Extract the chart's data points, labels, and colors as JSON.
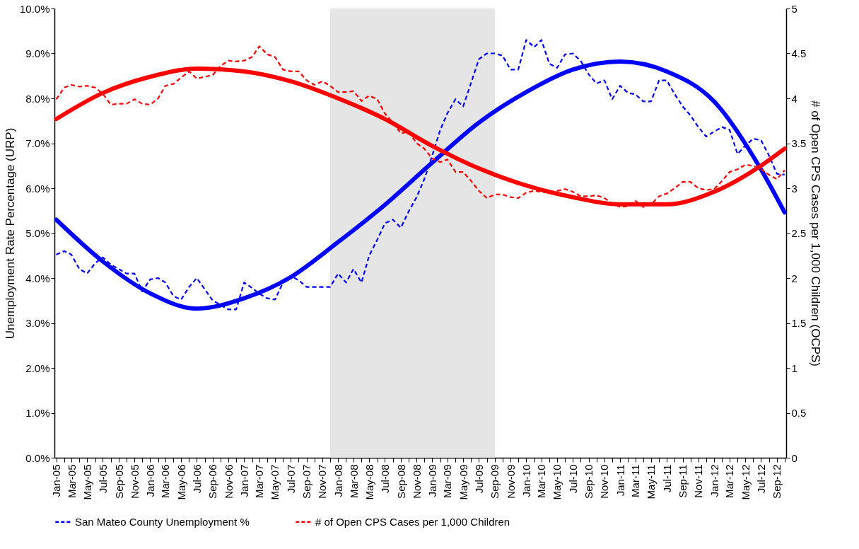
{
  "chart_data": {
    "type": "line",
    "ylabel": "Unemployment Rate Percentage (URP)",
    "y2label": "# of Open CPS Cases per 1,000 Children (OCPS)",
    "x": [
      "2005-01",
      "2005-02",
      "2005-03",
      "2005-04",
      "2005-05",
      "2005-06",
      "2005-07",
      "2005-08",
      "2005-09",
      "2005-10",
      "2005-11",
      "2005-12",
      "2006-01",
      "2006-02",
      "2006-03",
      "2006-04",
      "2006-05",
      "2006-06",
      "2006-07",
      "2006-08",
      "2006-09",
      "2006-10",
      "2006-11",
      "2006-12",
      "2007-01",
      "2007-02",
      "2007-03",
      "2007-04",
      "2007-05",
      "2007-06",
      "2007-07",
      "2007-08",
      "2007-09",
      "2007-10",
      "2007-11",
      "2007-12",
      "2008-01",
      "2008-02",
      "2008-03",
      "2008-04",
      "2008-05",
      "2008-06",
      "2008-07",
      "2008-08",
      "2008-09",
      "2008-10",
      "2008-11",
      "2008-12",
      "2009-01",
      "2009-02",
      "2009-03",
      "2009-04",
      "2009-05",
      "2009-06",
      "2009-07",
      "2009-08",
      "2009-09",
      "2009-10",
      "2009-11",
      "2009-12",
      "2010-01",
      "2010-02",
      "2010-03",
      "2010-04",
      "2010-05",
      "2010-06",
      "2010-07",
      "2010-08",
      "2010-09",
      "2010-10",
      "2010-11",
      "2010-12",
      "2011-01",
      "2011-02",
      "2011-03",
      "2011-04",
      "2011-05",
      "2011-06",
      "2011-07",
      "2011-08",
      "2011-09",
      "2011-10",
      "2011-11",
      "2011-12",
      "2012-01",
      "2012-02",
      "2012-03",
      "2012-04",
      "2012-05",
      "2012-06",
      "2012-07",
      "2012-08",
      "2012-09",
      "2012-10"
    ],
    "series": [
      {
        "name": "San Mateo County Unemployment %",
        "color": "#0000ff",
        "line_style": "dashed",
        "values": [
          4.52,
          4.6,
          4.52,
          4.2,
          4.1,
          4.33,
          4.46,
          4.3,
          4.2,
          4.1,
          4.1,
          3.7,
          3.97,
          4.0,
          3.9,
          3.6,
          3.52,
          3.8,
          4.0,
          3.75,
          3.5,
          3.4,
          3.3,
          3.3,
          3.9,
          3.78,
          3.65,
          3.55,
          3.52,
          3.9,
          4.05,
          3.95,
          3.8,
          3.8,
          3.8,
          3.8,
          4.1,
          3.9,
          4.2,
          3.9,
          4.5,
          4.85,
          5.22,
          5.3,
          5.12,
          5.48,
          5.8,
          6.2,
          6.73,
          7.3,
          7.67,
          7.98,
          7.82,
          8.35,
          8.87,
          9.0,
          9.0,
          8.95,
          8.64,
          8.64,
          9.3,
          9.14,
          9.3,
          8.77,
          8.68,
          8.98,
          9.0,
          8.83,
          8.53,
          8.33,
          8.4,
          7.98,
          8.28,
          8.12,
          8.09,
          7.93,
          7.93,
          8.4,
          8.4,
          8.09,
          7.82,
          7.62,
          7.36,
          7.15,
          7.26,
          7.36,
          7.3,
          6.76,
          6.95,
          7.1,
          7.07,
          6.73,
          6.32,
          6.3
        ]
      },
      {
        "name": "# of Open CPS Cases per 1,000 Children",
        "color": "#ff0000",
        "line_style": "dashed",
        "axis": "y2",
        "values": [
          3.99,
          4.12,
          4.15,
          4.13,
          4.14,
          4.12,
          4.05,
          3.93,
          3.94,
          3.94,
          3.99,
          3.94,
          3.93,
          4.0,
          4.14,
          4.16,
          4.23,
          4.3,
          4.22,
          4.24,
          4.26,
          4.36,
          4.42,
          4.41,
          4.42,
          4.46,
          4.58,
          4.49,
          4.46,
          4.32,
          4.3,
          4.3,
          4.2,
          4.15,
          4.19,
          4.14,
          4.07,
          4.07,
          4.08,
          3.97,
          4.03,
          3.99,
          3.83,
          3.73,
          3.61,
          3.63,
          3.5,
          3.44,
          3.33,
          3.29,
          3.32,
          3.18,
          3.18,
          3.08,
          2.97,
          2.89,
          2.93,
          2.93,
          2.9,
          2.89,
          2.95,
          2.97,
          2.96,
          2.95,
          2.97,
          2.99,
          2.96,
          2.91,
          2.91,
          2.92,
          2.89,
          2.83,
          2.79,
          2.8,
          2.86,
          2.79,
          2.82,
          2.91,
          2.94,
          3.0,
          3.07,
          3.07,
          3.0,
          2.98,
          2.99,
          3.08,
          3.18,
          3.21,
          3.26,
          3.25,
          3.21,
          3.15,
          3.1,
          3.2
        ]
      },
      {
        "type": "line",
        "color": "#0000ff",
        "line_style": "solid",
        "x": [
          "2005-01",
          "2005-07",
          "2006-01",
          "2006-07",
          "2007-01",
          "2007-07",
          "2008-01",
          "2008-07",
          "2009-01",
          "2009-07",
          "2010-01",
          "2010-07",
          "2011-01",
          "2011-07",
          "2012-01",
          "2012-07",
          "2012-10"
        ],
        "values": [
          5.3,
          4.37,
          3.66,
          3.32,
          3.55,
          4.02,
          4.8,
          5.63,
          6.57,
          7.46,
          8.14,
          8.64,
          8.82,
          8.6,
          7.93,
          6.42,
          5.46
        ]
      },
      {
        "type": "line",
        "color": "#ff0000",
        "line_style": "solid",
        "axis": "y2",
        "x": [
          "2005-01",
          "2005-07",
          "2006-01",
          "2006-07",
          "2007-01",
          "2007-07",
          "2008-01",
          "2008-07",
          "2009-01",
          "2009-07",
          "2010-01",
          "2010-07",
          "2011-01",
          "2011-07",
          "2012-01",
          "2012-07",
          "2012-10"
        ],
        "values": [
          3.77,
          4.06,
          4.24,
          4.33,
          4.3,
          4.19,
          4.0,
          3.77,
          3.47,
          3.22,
          3.03,
          2.9,
          2.82,
          2.82,
          2.96,
          3.25,
          3.44
        ]
      }
    ],
    "xlim": [
      "2004-12-25",
      "2012-10-07"
    ],
    "xticks": [
      {
        "value": "2005-01",
        "label": "Jan-05"
      },
      {
        "value": "2005-02",
        "label": null
      },
      {
        "value": "2005-03",
        "label": "Mar-05"
      },
      {
        "value": "2005-04",
        "label": null
      },
      {
        "value": "2005-05",
        "label": "May-05"
      },
      {
        "value": "2005-06",
        "label": null
      },
      {
        "value": "2005-07",
        "label": "Jul-05"
      },
      {
        "value": "2005-08",
        "label": null
      },
      {
        "value": "2005-09",
        "label": "Sep-05"
      },
      {
        "value": "2005-10",
        "label": null
      },
      {
        "value": "2005-11",
        "label": "Nov-05"
      },
      {
        "value": "2005-12",
        "label": null
      },
      {
        "value": "2006-01",
        "label": "Jan-06"
      },
      {
        "value": "2006-02",
        "label": null
      },
      {
        "value": "2006-03",
        "label": "Mar-06"
      },
      {
        "value": "2006-04",
        "label": null
      },
      {
        "value": "2006-05",
        "label": "May-06"
      },
      {
        "value": "2006-06",
        "label": null
      },
      {
        "value": "2006-07",
        "label": "Jul-06"
      },
      {
        "value": "2006-08",
        "label": null
      },
      {
        "value": "2006-09",
        "label": "Sep-06"
      },
      {
        "value": "2006-10",
        "label": null
      },
      {
        "value": "2006-11",
        "label": "Nov-06"
      },
      {
        "value": "2006-12",
        "label": null
      },
      {
        "value": "2007-01",
        "label": "Jan-07"
      },
      {
        "value": "2007-02",
        "label": null
      },
      {
        "value": "2007-03",
        "label": "Mar-07"
      },
      {
        "value": "2007-04",
        "label": null
      },
      {
        "value": "2007-05",
        "label": "May-07"
      },
      {
        "value": "2007-06",
        "label": null
      },
      {
        "value": "2007-07",
        "label": "Jul-07"
      },
      {
        "value": "2007-08",
        "label": null
      },
      {
        "value": "2007-09",
        "label": "Sep-07"
      },
      {
        "value": "2007-10",
        "label": null
      },
      {
        "value": "2007-11",
        "label": "Nov-07"
      },
      {
        "value": "2007-12",
        "label": null
      },
      {
        "value": "2008-01",
        "label": "Jan-08"
      },
      {
        "value": "2008-02",
        "label": null
      },
      {
        "value": "2008-03",
        "label": "Mar-08"
      },
      {
        "value": "2008-04",
        "label": null
      },
      {
        "value": "2008-05",
        "label": "May-08"
      },
      {
        "value": "2008-06",
        "label": null
      },
      {
        "value": "2008-07",
        "label": "Jul-08"
      },
      {
        "value": "2008-08",
        "label": null
      },
      {
        "value": "2008-09",
        "label": "Sep-08"
      },
      {
        "value": "2008-10",
        "label": null
      },
      {
        "value": "2008-11",
        "label": "Nov-08"
      },
      {
        "value": "2008-12",
        "label": null
      },
      {
        "value": "2009-01",
        "label": "Jan-09"
      },
      {
        "value": "2009-02",
        "label": null
      },
      {
        "value": "2009-03",
        "label": "Mar-09"
      },
      {
        "value": "2009-04",
        "label": null
      },
      {
        "value": "2009-05",
        "label": "May-09"
      },
      {
        "value": "2009-06",
        "label": null
      },
      {
        "value": "2009-07",
        "label": "Jul-09"
      },
      {
        "value": "2009-08",
        "label": null
      },
      {
        "value": "2009-09",
        "label": "Sep-09"
      },
      {
        "value": "2009-10",
        "label": null
      },
      {
        "value": "2009-11",
        "label": "Nov-09"
      },
      {
        "value": "2009-12",
        "label": null
      },
      {
        "value": "2010-01",
        "label": "Jan-10"
      },
      {
        "value": "2010-02",
        "label": null
      },
      {
        "value": "2010-03",
        "label": "Mar-10"
      },
      {
        "value": "2010-04",
        "label": null
      },
      {
        "value": "2010-05",
        "label": "May-10"
      },
      {
        "value": "2010-06",
        "label": null
      },
      {
        "value": "2010-07",
        "label": "Jul-10"
      },
      {
        "value": "2010-08",
        "label": null
      },
      {
        "value": "2010-09",
        "label": "Sep-10"
      },
      {
        "value": "2010-10",
        "label": null
      },
      {
        "value": "2010-11",
        "label": "Nov-10"
      },
      {
        "value": "2010-12",
        "label": null
      },
      {
        "value": "2011-01",
        "label": "Jan-11"
      },
      {
        "value": "2011-02",
        "label": null
      },
      {
        "value": "2011-03",
        "label": "Mar-11"
      },
      {
        "value": "2011-04",
        "label": null
      },
      {
        "value": "2011-05",
        "label": "May-11"
      },
      {
        "value": "2011-06",
        "label": null
      },
      {
        "value": "2011-07",
        "label": "Jul-11"
      },
      {
        "value": "2011-08",
        "label": null
      },
      {
        "value": "2011-09",
        "label": "Sep-11"
      },
      {
        "value": "2011-10",
        "label": null
      },
      {
        "value": "2011-11",
        "label": "Nov-11"
      },
      {
        "value": "2011-12",
        "label": null
      },
      {
        "value": "2012-01",
        "label": "Jan-12"
      },
      {
        "value": "2012-02",
        "label": null
      },
      {
        "value": "2012-03",
        "label": "Mar-12"
      },
      {
        "value": "2012-04",
        "label": null
      },
      {
        "value": "2012-05",
        "label": "May-12"
      },
      {
        "value": "2012-06",
        "label": null
      },
      {
        "value": "2012-07",
        "label": "Jul-12"
      },
      {
        "value": "2012-08",
        "label": null
      },
      {
        "value": "2012-09",
        "label": "Sep-12"
      },
      {
        "value": "2012-10",
        "label": null
      }
    ],
    "ylim": [
      0,
      10
    ],
    "yticks": [
      {
        "value": 0,
        "label": "0.0%"
      },
      {
        "value": 1,
        "label": "1.0%"
      },
      {
        "value": 2,
        "label": "2.0%"
      },
      {
        "value": 3,
        "label": "3.0%"
      },
      {
        "value": 4,
        "label": "4.0%"
      },
      {
        "value": 5,
        "label": "5.0%"
      },
      {
        "value": 6,
        "label": "6.0%"
      },
      {
        "value": 7,
        "label": "7.0%"
      },
      {
        "value": 8,
        "label": "8.0%"
      },
      {
        "value": 9,
        "label": "9.0%"
      },
      {
        "value": 10,
        "label": "10.0%"
      }
    ],
    "y2lim": [
      0,
      5
    ],
    "y2ticks": [
      0,
      0.5,
      1,
      1.5,
      2,
      2.5,
      3,
      3.5,
      4,
      4.5,
      5
    ],
    "bands": [
      {
        "axis": "x",
        "from": "2007-12",
        "to": "2009-09",
        "color": "#e5e5e5"
      }
    ],
    "legend": "bottom",
    "grid": false
  }
}
